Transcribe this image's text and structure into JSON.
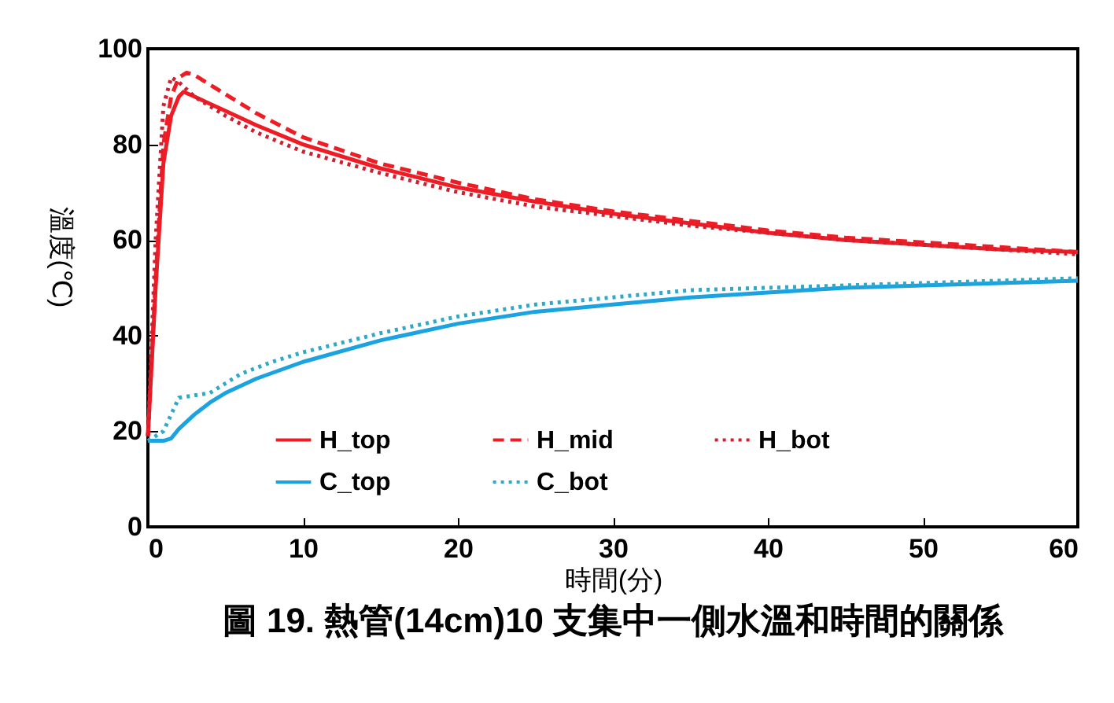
{
  "chart_data": {
    "type": "line",
    "title": "圖 19.  熱管(14cm)10 支集中一側水溫和時間的關係",
    "xlabel": "時間(分)",
    "ylabel": "溫度(℃)",
    "xlim": [
      0,
      60
    ],
    "xticks": [
      0,
      10,
      20,
      30,
      40,
      50,
      60
    ],
    "ylim": [
      0,
      100
    ],
    "yticks": [
      0,
      20,
      40,
      60,
      80,
      100
    ],
    "grid": false,
    "legend": "bottom",
    "marker": "none",
    "series": [
      {
        "name": "H_top",
        "color": "#ee1c25",
        "line_style": "solid",
        "x": [
          0,
          0.5,
          1,
          1.5,
          2,
          2.3,
          3,
          4,
          5,
          7,
          10,
          15,
          20,
          25,
          30,
          35,
          40,
          45,
          50,
          55,
          60
        ],
        "values": [
          19,
          50,
          76,
          86,
          90,
          91,
          90,
          88.5,
          87,
          84,
          80,
          75,
          71,
          68,
          65.5,
          63.5,
          61.5,
          60,
          59,
          58,
          57.5
        ]
      },
      {
        "name": "H_mid",
        "color": "#ee1c25",
        "line_style": "dashed",
        "x": [
          0,
          0.5,
          1,
          1.5,
          2,
          2.5,
          3,
          4,
          5,
          7,
          10,
          15,
          20,
          25,
          30,
          35,
          40,
          45,
          50,
          55,
          60
        ],
        "values": [
          19,
          52,
          80,
          90,
          94,
          95,
          94.5,
          92.5,
          90.5,
          86.5,
          81.5,
          76,
          72,
          68.5,
          66,
          64,
          62,
          60.5,
          59.5,
          58.5,
          57.5
        ]
      },
      {
        "name": "H_bot",
        "color": "#d02030",
        "line_style": "dotted",
        "x": [
          0,
          0.5,
          1,
          1.5,
          2,
          3,
          4,
          5,
          7,
          10,
          15,
          20,
          25,
          30,
          35,
          40,
          45,
          50,
          55,
          60
        ],
        "values": [
          19,
          60,
          88,
          94,
          93,
          90,
          88,
          86,
          82.5,
          78.5,
          74,
          70,
          67,
          65,
          63,
          61.5,
          60,
          59,
          58,
          57
        ]
      },
      {
        "name": "C_top",
        "color": "#1aa3e0",
        "line_style": "solid",
        "x": [
          0,
          1,
          1.5,
          2,
          3,
          4,
          5,
          7,
          10,
          15,
          20,
          25,
          30,
          35,
          40,
          45,
          50,
          55,
          60
        ],
        "values": [
          18,
          18,
          18.5,
          20.5,
          23.5,
          26,
          28,
          31,
          34.5,
          39,
          42.5,
          45,
          46.5,
          48,
          49,
          50,
          50.5,
          51,
          51.5
        ]
      },
      {
        "name": "C_bot",
        "color": "#30a8c8",
        "line_style": "dotted",
        "x": [
          0,
          1,
          2,
          3,
          4,
          5,
          6,
          8,
          10,
          15,
          20,
          25,
          30,
          35,
          40,
          45,
          50,
          55,
          60
        ],
        "values": [
          18,
          20,
          27,
          27.5,
          28,
          30,
          32,
          34.5,
          36.5,
          40.5,
          44,
          46.5,
          48,
          49.5,
          50,
          50.5,
          51,
          51.5,
          52
        ]
      }
    ]
  }
}
